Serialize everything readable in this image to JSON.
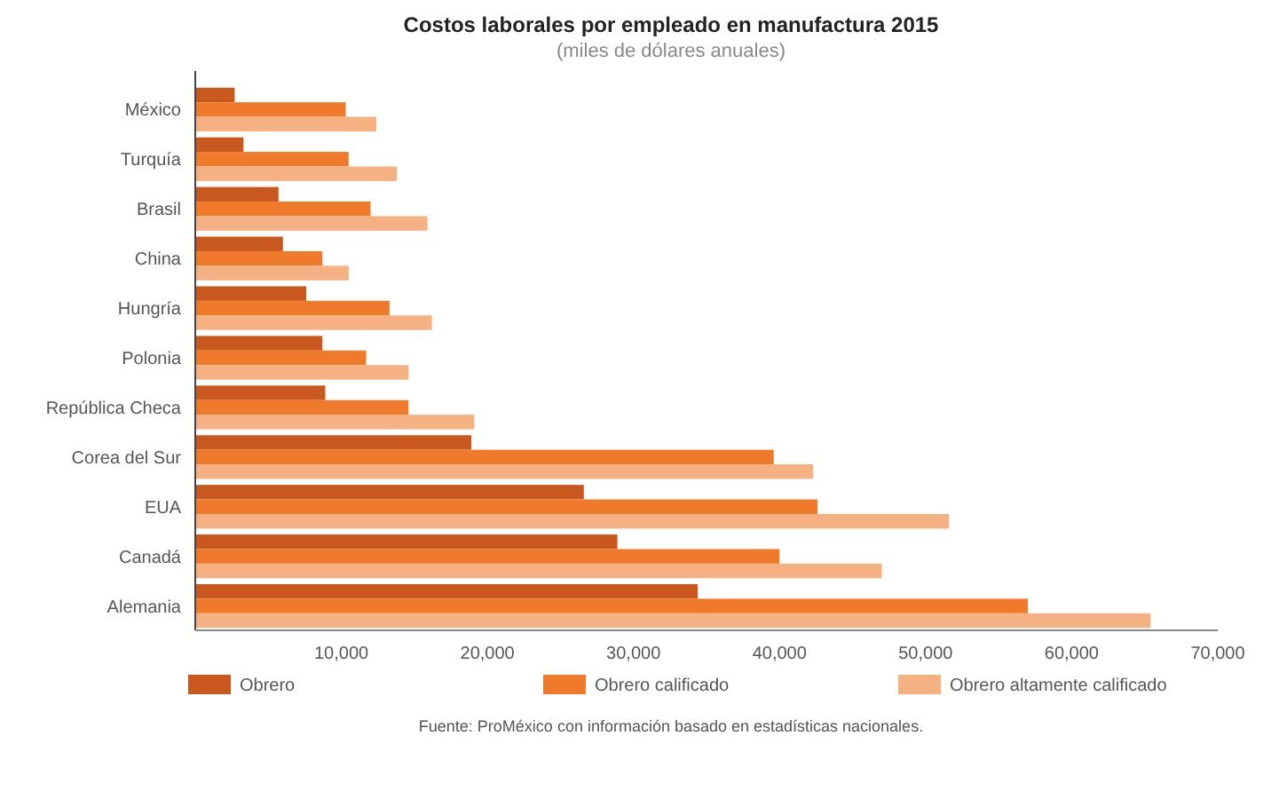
{
  "chart_data": {
    "type": "bar",
    "orientation": "horizontal",
    "title": "Costos laborales por empleado en manufactura 2015",
    "subtitle": "(miles de dólares anuales)",
    "categories": [
      "México",
      "Turquía",
      "Brasil",
      "China",
      "Hungría",
      "Polonia",
      "República Checa",
      "Corea del Sur",
      "EUA",
      "Canadá",
      "Alemania"
    ],
    "series": [
      {
        "name": "Obrero",
        "color": "#c9581f",
        "values": [
          2700,
          3300,
          5700,
          6000,
          7600,
          8700,
          8900,
          18900,
          26600,
          28900,
          34400
        ]
      },
      {
        "name": "Obrero calificado",
        "color": "#ef7a2b",
        "values": [
          10300,
          10500,
          12000,
          8700,
          13300,
          11700,
          14600,
          39600,
          42600,
          40000,
          57000
        ]
      },
      {
        "name": "Obrero altamente calificado",
        "color": "#f6b183",
        "values": [
          12400,
          13800,
          15900,
          10500,
          16200,
          14600,
          19100,
          42300,
          51600,
          47000,
          65400
        ]
      }
    ],
    "xlim": [
      0,
      70000
    ],
    "xticks": [
      {
        "value": 10000,
        "label": "10,000"
      },
      {
        "value": 20000,
        "label": "20,000"
      },
      {
        "value": 30000,
        "label": "30,000"
      },
      {
        "value": 40000,
        "label": "40,000"
      },
      {
        "value": 50000,
        "label": "50,000"
      },
      {
        "value": 60000,
        "label": "60,000"
      },
      {
        "value": 70000,
        "label": "70,000"
      }
    ],
    "grid": false,
    "legend": "bottom",
    "annotations": [
      "Fuente: ProMéxico con información basado en estadísticas nacionales."
    ]
  }
}
